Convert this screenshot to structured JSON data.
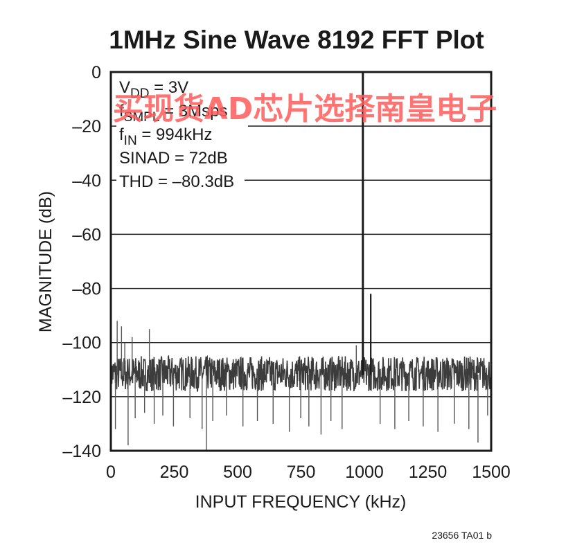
{
  "chart_data": {
    "type": "line",
    "title": "1MHz Sine Wave 8192 FFT Plot",
    "xlabel": "INPUT FREQUENCY (kHz)",
    "ylabel": "MAGNITUDE (dB)",
    "xlim": [
      0,
      1500
    ],
    "ylim": [
      -140,
      0
    ],
    "x_ticks": [
      "0",
      "250",
      "500",
      "750",
      "1000",
      "1250",
      "1500"
    ],
    "x_tick_values": [
      0,
      250,
      500,
      750,
      1000,
      1250,
      1500
    ],
    "y_ticks": [
      "0",
      "–20",
      "–40",
      "–60",
      "–80",
      "–100",
      "–120",
      "–140"
    ],
    "y_tick_values": [
      0,
      -20,
      -40,
      -60,
      -80,
      -100,
      -120,
      -140
    ],
    "grid": "horizontal",
    "series_color": "#1a1a1a",
    "noise_floor_db": -112,
    "noise_band_db": [
      -118,
      -105
    ],
    "noise_spikes_db": [
      [
        18,
        -132
      ],
      [
        25,
        -92
      ],
      [
        42,
        -94
      ],
      [
        55,
        -100
      ],
      [
        68,
        -138
      ],
      [
        84,
        -98
      ],
      [
        96,
        -128
      ],
      [
        133,
        -126
      ],
      [
        152,
        -95
      ],
      [
        171,
        -130
      ],
      [
        205,
        -127
      ],
      [
        247,
        -131
      ],
      [
        312,
        -128
      ],
      [
        360,
        -132
      ],
      [
        377,
        -140
      ],
      [
        402,
        -129
      ],
      [
        456,
        -127
      ],
      [
        521,
        -131
      ],
      [
        578,
        -129
      ],
      [
        640,
        -130
      ],
      [
        704,
        -133
      ],
      [
        749,
        -128
      ],
      [
        781,
        -131
      ],
      [
        829,
        -134
      ],
      [
        868,
        -129
      ],
      [
        912,
        -132
      ],
      [
        968,
        -101
      ],
      [
        1062,
        -130
      ],
      [
        1120,
        -132
      ],
      [
        1175,
        -129
      ],
      [
        1232,
        -131
      ],
      [
        1290,
        -133
      ],
      [
        1355,
        -130
      ],
      [
        1412,
        -132
      ],
      [
        1448,
        -137
      ],
      [
        1486,
        -127
      ]
    ],
    "peaks": [
      {
        "x": 994,
        "y": -0.3
      },
      {
        "x": 1025,
        "y": -82
      }
    ],
    "annotations": [
      {
        "main": "V",
        "sub": "DD",
        "rest": " = 3V"
      },
      {
        "main": "f",
        "sub": "SMPL",
        "rest": " = 3Msps"
      },
      {
        "main": "f",
        "sub": "IN",
        "rest": " = 994kHz"
      },
      {
        "main": "SINAD = 72dB",
        "sub": "",
        "rest": ""
      },
      {
        "main": "THD = –80.3dB",
        "sub": "",
        "rest": ""
      }
    ]
  },
  "watermark": "买现货AD芯片选择南皇电子",
  "figure_code": "23656 TA01 b"
}
